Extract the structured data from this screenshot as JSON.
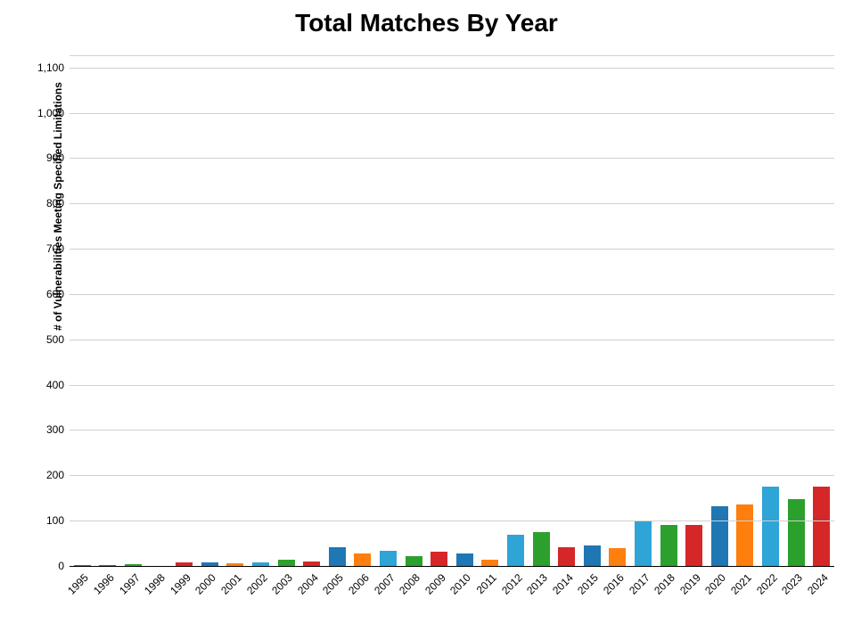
{
  "chart": {
    "type": "bar",
    "title": "Total Matches By Year",
    "title_fontsize": 28,
    "title_fontweight": 700,
    "ylabel": "# of Vulnerabilities Meeting Specified Limitations",
    "ylabel_fontsize": 12,
    "ylabel_fontweight": 700,
    "axis_tick_fontsize": 12,
    "x_tick_fontsize": 12,
    "x_tick_rotation_deg": -45,
    "background_color": "#ffffff",
    "grid_color": "#d0d0d0",
    "axis_color": "#000000",
    "ylim": [
      0,
      1125
    ],
    "ytick_step": 100,
    "yticks": [
      0,
      100,
      200,
      300,
      400,
      500,
      600,
      700,
      800,
      900,
      1000,
      1100
    ],
    "bar_width_ratio": 0.66,
    "categories": [
      "1995",
      "1996",
      "1997",
      "1998",
      "1999",
      "2000",
      "2001",
      "2002",
      "2003",
      "2004",
      "2005",
      "2006",
      "2007",
      "2008",
      "2009",
      "2010",
      "2011",
      "2012",
      "2013",
      "2014",
      "2015",
      "2016",
      "2017",
      "2018",
      "2019",
      "2020",
      "2021",
      "2022",
      "2023",
      "2024"
    ],
    "values": [
      2,
      2,
      4,
      1,
      8,
      7,
      6,
      7,
      13,
      10,
      42,
      28,
      34,
      22,
      32,
      28,
      14,
      68,
      75,
      42,
      45,
      40,
      99,
      90,
      90,
      131,
      135,
      175,
      148,
      175
    ],
    "bar_colors": [
      "#1f77b4",
      "#1f77b4",
      "#2ca02c",
      "#2ca02c",
      "#d62728",
      "#1f77b4",
      "#ff7f0e",
      "#2fa4d6",
      "#2ca02c",
      "#d62728",
      "#1f77b4",
      "#ff7f0e",
      "#2fa4d6",
      "#2ca02c",
      "#d62728",
      "#1f77b4",
      "#ff7f0e",
      "#2fa4d6",
      "#2ca02c",
      "#d62728",
      "#1f77b4",
      "#ff7f0e",
      "#2fa4d6",
      "#2ca02c",
      "#d62728",
      "#1f77b4",
      "#ff7f0e",
      "#2fa4d6",
      "#2ca02c",
      "#d62728"
    ]
  }
}
